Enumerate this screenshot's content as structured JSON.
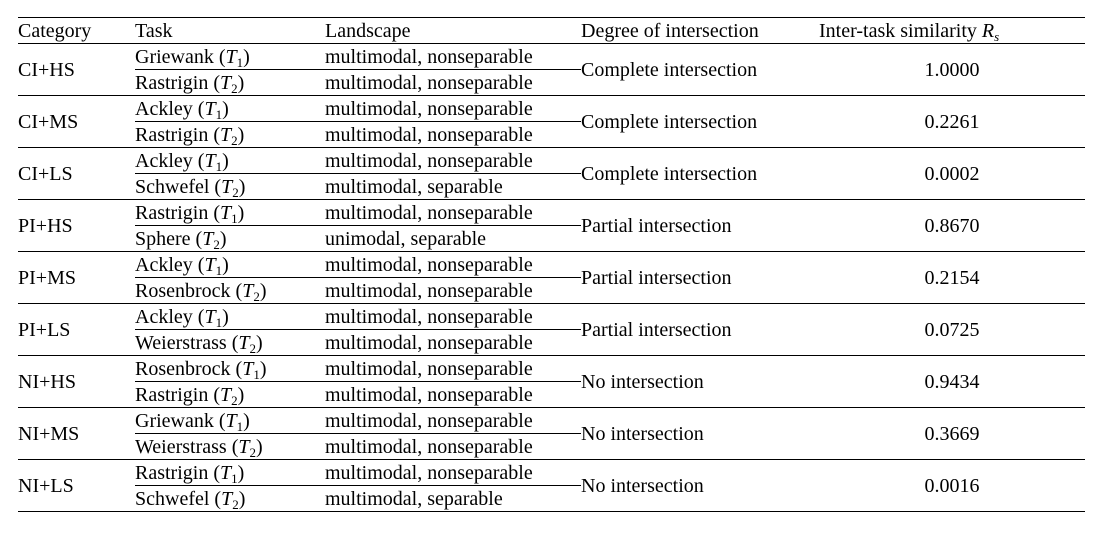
{
  "table": {
    "headers": {
      "category": "Category",
      "task": "Task",
      "landscape": "Landscape",
      "degree": "Degree of intersection",
      "similarity_prefix": "Inter-task similarity ",
      "similarity_symbol": "R",
      "similarity_sub": "s"
    },
    "rows": [
      {
        "category": "CI+HS",
        "task1": "Griewank (T1)",
        "task1_name": "Griewank",
        "task2_name": "Rastrigin",
        "landscape1": "multimodal, nonseparable",
        "landscape2": "multimodal, nonseparable",
        "degree": "Complete intersection",
        "similarity": "1.0000"
      },
      {
        "category": "CI+MS",
        "task1_name": "Ackley",
        "task2_name": "Rastrigin",
        "landscape1": "multimodal, nonseparable",
        "landscape2": "multimodal, nonseparable",
        "degree": "Complete intersection",
        "similarity": "0.2261"
      },
      {
        "category": "CI+LS",
        "task1_name": "Ackley",
        "task2_name": "Schwefel",
        "landscape1": "multimodal, nonseparable",
        "landscape2": "multimodal, separable",
        "degree": "Complete intersection",
        "similarity": "0.0002"
      },
      {
        "category": "PI+HS",
        "task1_name": "Rastrigin",
        "task2_name": "Sphere",
        "landscape1": "multimodal, nonseparable",
        "landscape2": "unimodal, separable",
        "degree": "Partial intersection",
        "similarity": "0.8670"
      },
      {
        "category": "PI+MS",
        "task1_name": "Ackley",
        "task2_name": "Rosenbrock",
        "landscape1": "multimodal, nonseparable",
        "landscape2": "multimodal, nonseparable",
        "degree": "Partial intersection",
        "similarity": "0.2154"
      },
      {
        "category": "PI+LS",
        "task1_name": "Ackley",
        "task2_name": "Weierstrass",
        "landscape1": "multimodal, nonseparable",
        "landscape2": "multimodal, nonseparable",
        "degree": "Partial intersection",
        "similarity": "0.0725"
      },
      {
        "category": "NI+HS",
        "task1_name": "Rosenbrock",
        "task2_name": "Rastrigin",
        "landscape1": "multimodal, nonseparable",
        "landscape2": "multimodal, nonseparable",
        "degree": "No intersection",
        "similarity": "0.9434"
      },
      {
        "category": "NI+MS",
        "task1_name": "Griewank",
        "task2_name": "Weierstrass",
        "landscape1": "multimodal, nonseparable",
        "landscape2": "multimodal, nonseparable",
        "degree": "No intersection",
        "similarity": "0.3669"
      },
      {
        "category": "NI+LS",
        "task1_name": "Rastrigin",
        "task2_name": "Schwefel",
        "landscape1": "multimodal, nonseparable",
        "landscape2": "multimodal, separable",
        "degree": "No intersection",
        "similarity": "0.0016"
      }
    ],
    "task_symbol": "T",
    "task1_sub": "1",
    "task2_sub": "2"
  }
}
